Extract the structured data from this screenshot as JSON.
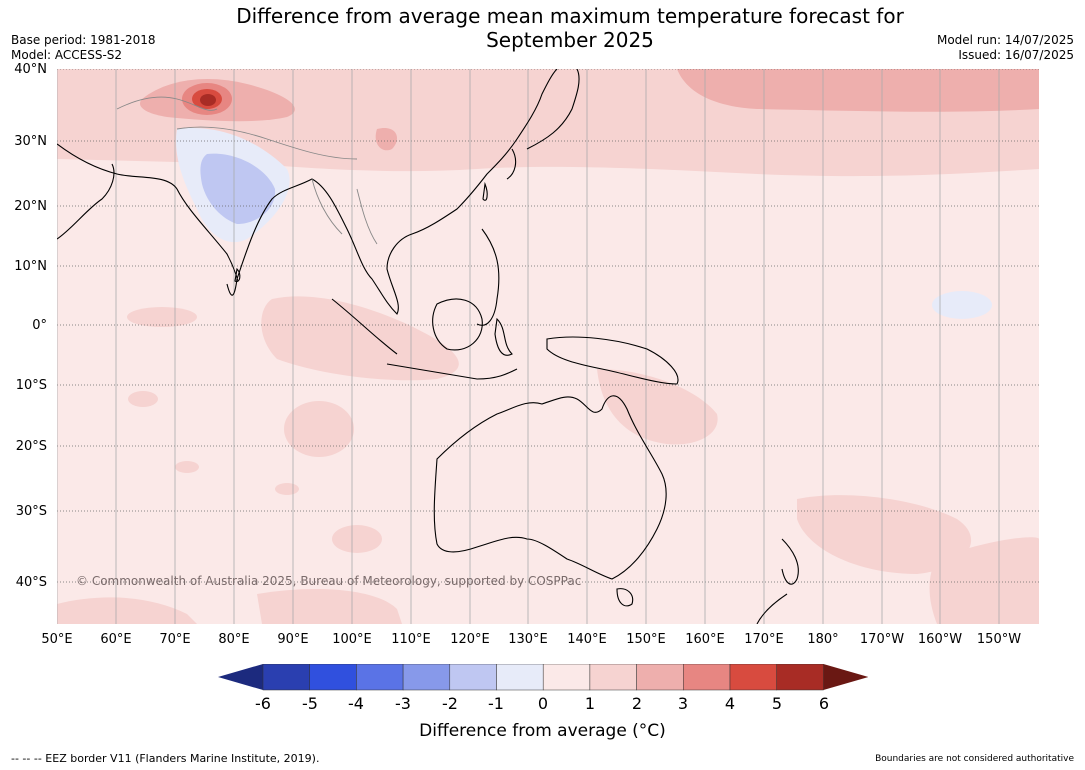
{
  "title_line1": "Difference from average mean maximum temperature forecast for",
  "title_line2": "September 2025",
  "meta_left": [
    "Base period: 1981-2018",
    "Model: ACCESS-S2"
  ],
  "meta_right": [
    "Model run: 14/07/2025",
    "Issued: 16/07/2025"
  ],
  "lat_labels": [
    "40°N",
    "30°N",
    "20°N",
    "10°N",
    "0°",
    "10°S",
    "20°S",
    "30°S",
    "40°S"
  ],
  "lon_labels": [
    "50°E",
    "60°E",
    "70°E",
    "80°E",
    "90°E",
    "100°E",
    "110°E",
    "120°E",
    "130°E",
    "140°E",
    "150°E",
    "160°E",
    "170°E",
    "180°",
    "170°W",
    "160°W",
    "150°W"
  ],
  "copyright": "© Commonwealth of Australia 2025, Bureau of Meteorology, supported by COSPPac",
  "colorbar": {
    "ticks": [
      "-6",
      "-5",
      "-4",
      "-3",
      "-2",
      "-1",
      "0",
      "1",
      "2",
      "3",
      "4",
      "5",
      "6"
    ],
    "colors": [
      "#1c2a7e",
      "#2a3fb0",
      "#3050de",
      "#5a73e6",
      "#8799ea",
      "#bfc7f2",
      "#e7ebf9",
      "#fbe9e8",
      "#f6d3d1",
      "#eeafad",
      "#e78682",
      "#d84b3f",
      "#a82c25",
      "#6a1813"
    ],
    "label": "Difference from average (°C)"
  },
  "footer_left": "--  --  -- EEZ border V11 (Flanders Marine Institute, 2019).",
  "footer_right": "Boundaries are not considered authoritative"
}
